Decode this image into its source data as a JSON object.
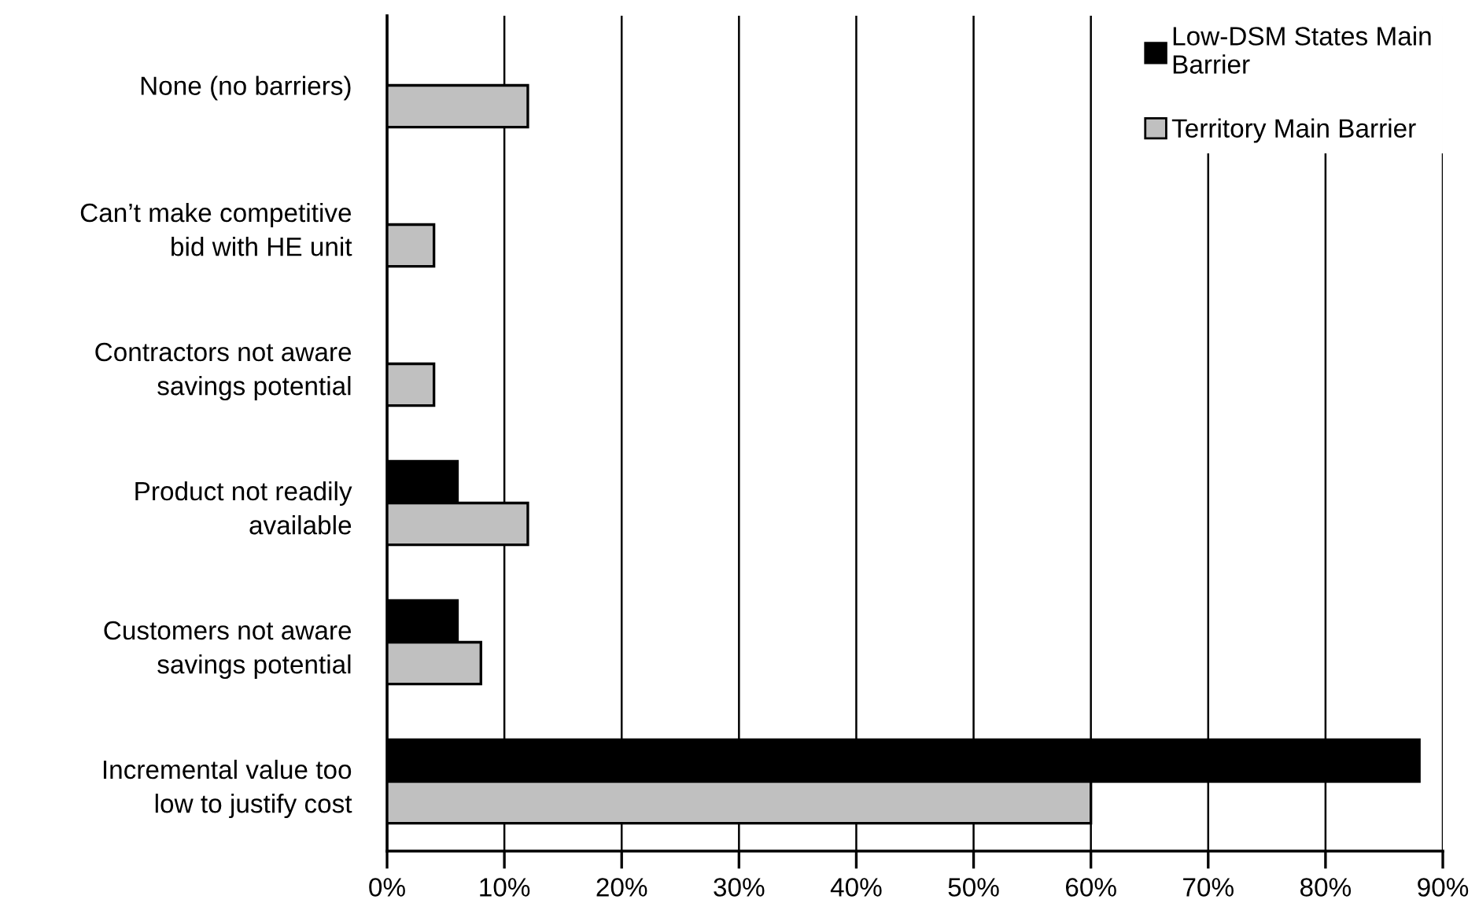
{
  "chart_data": {
    "type": "bar",
    "orientation": "horizontal",
    "categories": [
      "None (no barriers)",
      "Can’t make competitive\nbid with HE unit",
      "Contractors not aware\nsavings potential",
      "Product not readily\navailable",
      "Customers not aware\nsavings potential",
      "Incremental value too\nlow to justify cost"
    ],
    "series": [
      {
        "name": "Low-DSM States Main\nBarrier",
        "color": "#000000",
        "values": [
          null,
          null,
          null,
          6,
          6,
          88
        ]
      },
      {
        "name": "Territory Main Barrier",
        "color": "#c0c0c0",
        "values": [
          12,
          4,
          4,
          12,
          8,
          60
        ]
      }
    ],
    "xlim": [
      0,
      90
    ],
    "xticks": [
      {
        "value": 0,
        "label": "0%"
      },
      {
        "value": 10,
        "label": "10%"
      },
      {
        "value": 20,
        "label": "20%"
      },
      {
        "value": 30,
        "label": "30%"
      },
      {
        "value": 40,
        "label": "40%"
      },
      {
        "value": 50,
        "label": "50%"
      },
      {
        "value": 60,
        "label": "60%"
      },
      {
        "value": 70,
        "label": "70%"
      },
      {
        "value": 80,
        "label": "80%"
      },
      {
        "value": 90,
        "label": "90%"
      }
    ],
    "grid": "x",
    "legend": "top right"
  }
}
